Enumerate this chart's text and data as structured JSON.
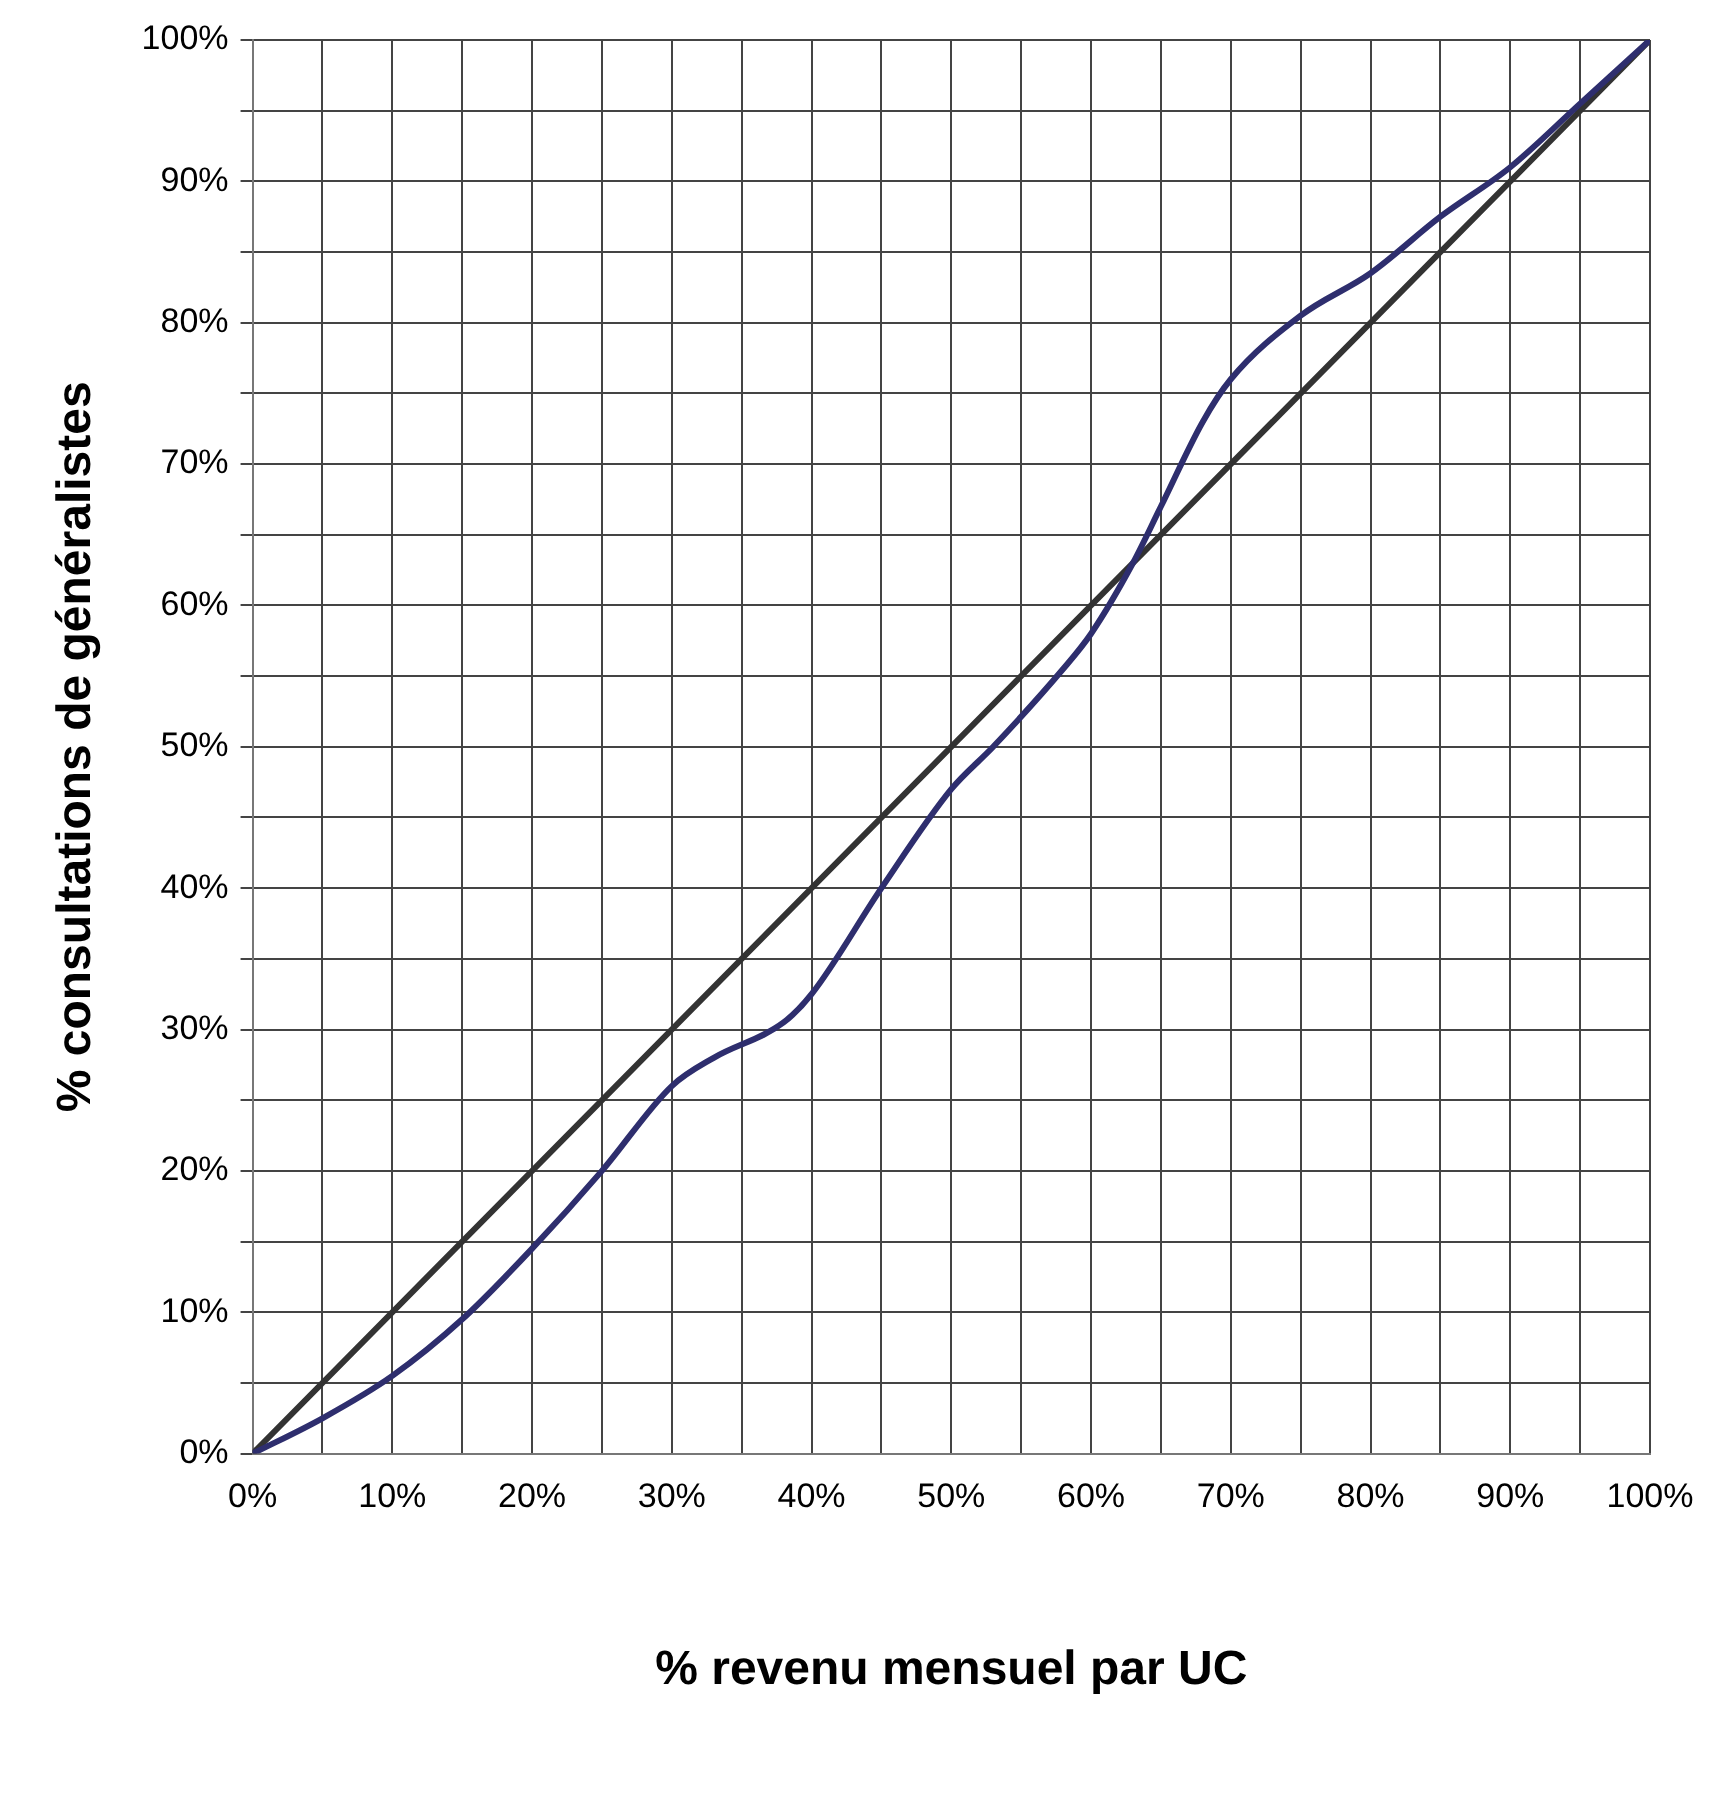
{
  "chart_data": {
    "type": "line",
    "xlabel": "% revenu mensuel par UC",
    "ylabel": "% consultations de généralistes",
    "xlim": [
      0,
      100
    ],
    "ylim": [
      0,
      100
    ],
    "xticks": [
      {
        "value": 0,
        "label": "0%"
      },
      {
        "value": 5,
        "label": null
      },
      {
        "value": 10,
        "label": "10%"
      },
      {
        "value": 15,
        "label": null
      },
      {
        "value": 20,
        "label": "20%"
      },
      {
        "value": 25,
        "label": null
      },
      {
        "value": 30,
        "label": "30%"
      },
      {
        "value": 35,
        "label": null
      },
      {
        "value": 40,
        "label": "40%"
      },
      {
        "value": 45,
        "label": null
      },
      {
        "value": 50,
        "label": "50%"
      },
      {
        "value": 55,
        "label": null
      },
      {
        "value": 60,
        "label": "60%"
      },
      {
        "value": 65,
        "label": null
      },
      {
        "value": 70,
        "label": "70%"
      },
      {
        "value": 75,
        "label": null
      },
      {
        "value": 80,
        "label": "80%"
      },
      {
        "value": 85,
        "label": null
      },
      {
        "value": 90,
        "label": "90%"
      },
      {
        "value": 95,
        "label": null
      },
      {
        "value": 100,
        "label": "100%"
      }
    ],
    "yticks": [
      {
        "value": 0,
        "label": "0%"
      },
      {
        "value": 5,
        "label": null
      },
      {
        "value": 10,
        "label": "10%"
      },
      {
        "value": 15,
        "label": null
      },
      {
        "value": 20,
        "label": "20%"
      },
      {
        "value": 25,
        "label": null
      },
      {
        "value": 30,
        "label": "30%"
      },
      {
        "value": 35,
        "label": null
      },
      {
        "value": 40,
        "label": "40%"
      },
      {
        "value": 45,
        "label": null
      },
      {
        "value": 50,
        "label": "50%"
      },
      {
        "value": 55,
        "label": null
      },
      {
        "value": 60,
        "label": "60%"
      },
      {
        "value": 65,
        "label": null
      },
      {
        "value": 70,
        "label": "70%"
      },
      {
        "value": 75,
        "label": null
      },
      {
        "value": 80,
        "label": "80%"
      },
      {
        "value": 85,
        "label": null
      },
      {
        "value": 90,
        "label": "90%"
      },
      {
        "value": 95,
        "label": null
      },
      {
        "value": 100,
        "label": "100%"
      }
    ],
    "grid": true,
    "legend": false,
    "marker": "none",
    "line_style": "solid",
    "series": [
      {
        "color": "#2e2e6e",
        "x": [
          0,
          5,
          10,
          15,
          20,
          25,
          30,
          33,
          38,
          40,
          45,
          50,
          53,
          58,
          60,
          63,
          65,
          68,
          70,
          75,
          80,
          85,
          90,
          95,
          100
        ],
        "values": [
          0,
          2.5,
          5.5,
          9.5,
          14.5,
          20,
          26,
          28,
          30.5,
          32.5,
          40,
          47,
          50,
          55.5,
          58,
          63,
          67,
          73,
          76,
          80.5,
          83.5,
          87.5,
          91,
          95.5,
          100
        ]
      },
      {
        "color": "#333333",
        "x": [
          0,
          100
        ],
        "values": [
          0,
          100
        ]
      }
    ]
  }
}
